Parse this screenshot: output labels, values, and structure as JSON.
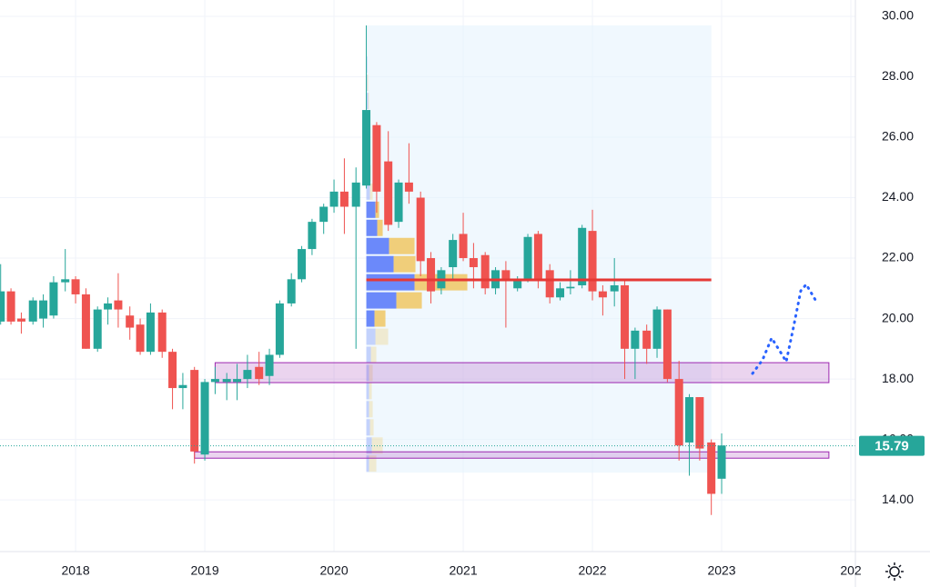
{
  "chart_data": {
    "type": "candlestick",
    "xlim": [
      2017.415,
      2024.035
    ],
    "xticks": [
      2018,
      2019,
      2020,
      2021,
      2022,
      2023,
      {
        "value": 2024,
        "label": "202"
      }
    ],
    "ylim": [
      12.29,
      30.54
    ],
    "yticks": [
      {
        "value": 14,
        "label": "14.00"
      },
      {
        "value": 16,
        "label": "16.00"
      },
      {
        "value": 18,
        "label": "18.00"
      },
      {
        "value": 20,
        "label": "20.00"
      },
      {
        "value": 22,
        "label": "22.00"
      },
      {
        "value": 24,
        "label": "24.00"
      },
      {
        "value": 26,
        "label": "26.00"
      },
      {
        "value": 28,
        "label": "28.00"
      },
      {
        "value": 30,
        "label": "30.00"
      }
    ],
    "grid": true,
    "up_color": "#26a69a",
    "down_color": "#ef5350",
    "x": [
      2017.42,
      2017.5,
      2017.58,
      2017.67,
      2017.75,
      2017.83,
      2017.92,
      2018.0,
      2018.08,
      2018.17,
      2018.25,
      2018.33,
      2018.42,
      2018.5,
      2018.58,
      2018.67,
      2018.75,
      2018.83,
      2018.92,
      2019.0,
      2019.08,
      2019.17,
      2019.25,
      2019.33,
      2019.42,
      2019.5,
      2019.58,
      2019.67,
      2019.75,
      2019.83,
      2019.92,
      2020.0,
      2020.08,
      2020.17,
      2020.25,
      2020.33,
      2020.42,
      2020.5,
      2020.58,
      2020.67,
      2020.75,
      2020.83,
      2020.92,
      2021.0,
      2021.08,
      2021.17,
      2021.25,
      2021.33,
      2021.42,
      2021.5,
      2021.58,
      2021.67,
      2021.75,
      2021.83,
      2021.92,
      2022.0,
      2022.08,
      2022.17,
      2022.25,
      2022.33,
      2022.42,
      2022.5,
      2022.58,
      2022.67,
      2022.75,
      2022.83,
      2022.92,
      2023.0
    ],
    "open": [
      19.9,
      20.9,
      20.0,
      19.9,
      20.0,
      20.1,
      21.2,
      21.3,
      20.8,
      19.0,
      20.3,
      20.6,
      20.1,
      19.8,
      18.9,
      20.2,
      18.9,
      17.7,
      18.3,
      15.5,
      17.9,
      17.9,
      17.9,
      18.0,
      18.4,
      18.1,
      18.8,
      20.5,
      21.3,
      22.3,
      23.2,
      23.7,
      24.2,
      23.7,
      24.4,
      26.4,
      25.2,
      23.2,
      24.5,
      24.0,
      22.0,
      21.0,
      21.7,
      22.8,
      22.0,
      22.1,
      21.0,
      21.6,
      21.0,
      21.3,
      22.8,
      21.6,
      20.7,
      21.0,
      21.1,
      22.9,
      20.9,
      20.9,
      21.1,
      19.0,
      19.6,
      19.0,
      20.3,
      18.0,
      15.9,
      17.4,
      15.9,
      14.7
    ],
    "high": [
      21.8,
      21.0,
      20.2,
      20.7,
      20.8,
      21.4,
      22.3,
      21.4,
      21.0,
      20.4,
      20.7,
      21.5,
      20.4,
      20.0,
      20.5,
      20.3,
      19.0,
      18.2,
      18.4,
      18.0,
      18.4,
      18.2,
      18.5,
      18.8,
      18.9,
      19.0,
      20.6,
      21.5,
      22.4,
      23.3,
      23.8,
      24.6,
      25.3,
      25.0,
      29.7,
      26.5,
      26.2,
      24.6,
      25.8,
      24.2,
      22.2,
      21.7,
      22.8,
      23.5,
      22.5,
      22.2,
      21.7,
      21.9,
      21.4,
      22.8,
      22.9,
      21.8,
      21.2,
      21.6,
      23.1,
      23.6,
      21.1,
      22.0,
      21.3,
      19.7,
      19.8,
      20.4,
      20.3,
      18.6,
      17.5,
      17.4,
      16.0,
      16.2
    ],
    "low": [
      19.8,
      19.8,
      19.5,
      19.8,
      19.7,
      20.0,
      20.9,
      20.5,
      19.0,
      18.9,
      19.8,
      19.7,
      19.3,
      18.8,
      18.8,
      18.7,
      17.0,
      17.0,
      15.2,
      15.3,
      17.5,
      17.3,
      17.3,
      17.7,
      17.8,
      17.8,
      18.7,
      20.4,
      21.2,
      22.1,
      22.8,
      23.5,
      22.8,
      19.0,
      24.3,
      23.5,
      22.9,
      23.0,
      23.8,
      21.4,
      20.5,
      20.8,
      21.3,
      21.9,
      21.0,
      20.8,
      20.8,
      19.7,
      20.9,
      21.2,
      21.0,
      20.5,
      20.6,
      20.8,
      21.0,
      20.6,
      20.1,
      20.4,
      18.0,
      18.0,
      18.5,
      18.7,
      17.9,
      15.3,
      14.8,
      15.3,
      13.5,
      14.2
    ],
    "close": [
      20.9,
      19.9,
      19.9,
      20.6,
      20.6,
      21.2,
      21.3,
      20.8,
      19.0,
      20.3,
      20.5,
      20.3,
      19.7,
      18.9,
      20.2,
      18.9,
      17.7,
      17.8,
      15.6,
      17.9,
      18.0,
      18.0,
      18.0,
      18.3,
      18.0,
      18.8,
      20.5,
      21.3,
      22.3,
      23.2,
      23.7,
      24.2,
      23.7,
      24.5,
      26.9,
      24.2,
      23.1,
      24.5,
      24.2,
      21.9,
      20.9,
      21.6,
      22.6,
      22.0,
      21.7,
      21.0,
      21.6,
      21.3,
      21.3,
      22.7,
      21.3,
      20.7,
      21.0,
      21.05,
      23.0,
      20.9,
      20.7,
      21.1,
      19.0,
      19.6,
      19.0,
      20.3,
      18.0,
      15.8,
      17.4,
      15.7,
      14.2,
      15.8
    ],
    "last_price": {
      "value": 15.79,
      "label": "15.79"
    },
    "range_box": {
      "x": [
        2020.25,
        2022.92
      ],
      "y": [
        14.9,
        29.7
      ],
      "color": "#e3f2fd"
    },
    "poc_line": {
      "value": 21.28,
      "color": "#e53935"
    },
    "zones": [
      {
        "x": [
          2019.08,
          2023.83
        ],
        "y": [
          17.88,
          18.54
        ],
        "color": "#9c27b0"
      },
      {
        "x": [
          2018.92,
          2023.83
        ],
        "y": [
          15.38,
          15.59
        ],
        "color": "#9c27b0"
      }
    ],
    "volume_profile": {
      "bins": [
        14.9,
        15.5,
        16.1,
        16.7,
        17.3,
        17.9,
        18.5,
        19.1,
        19.7,
        20.3,
        20.9,
        21.5,
        22.1,
        22.7,
        23.3,
        23.9,
        24.5,
        25.1,
        25.7,
        26.3,
        26.9,
        27.5,
        28.1,
        28.7,
        29.3,
        29.9
      ],
      "up": [
        3,
        6,
        4,
        3,
        3,
        3,
        5,
        10,
        9,
        33,
        53,
        30,
        25,
        12,
        10,
        4,
        3,
        2,
        2,
        2,
        2,
        1,
        1,
        0,
        0
      ],
      "down": [
        8,
        12,
        4,
        4,
        3,
        4,
        6,
        14,
        12,
        28,
        58,
        24,
        28,
        6,
        4,
        3,
        2,
        2,
        1,
        1,
        1,
        1,
        0,
        0,
        0
      ],
      "value_area": [
        19.7,
        23.9
      ],
      "up_color": "#5c7cfa",
      "down_color": "#f0c96b"
    }
  }
}
